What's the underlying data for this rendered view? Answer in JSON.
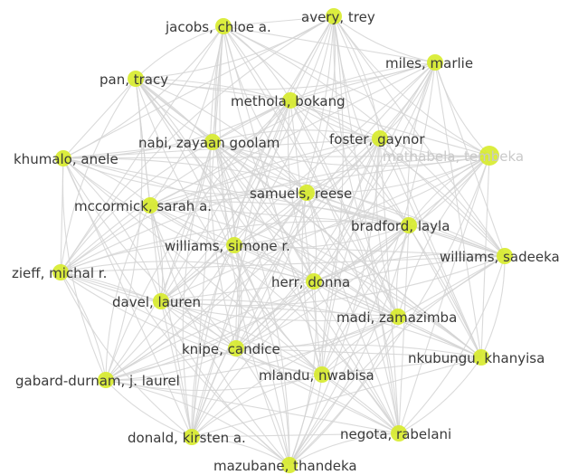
{
  "network": {
    "node_color": "#d7eb2a",
    "edge_color": "#d3d3d3",
    "label_color": "#3a3a3a",
    "nodes": [
      {
        "id": "avery",
        "label": "avery, trey"
      },
      {
        "id": "jacobs",
        "label": "jacobs, chloe a."
      },
      {
        "id": "miles",
        "label": "miles, marlie"
      },
      {
        "id": "pan",
        "label": "pan, tracy"
      },
      {
        "id": "methola",
        "label": "methola, bokang"
      },
      {
        "id": "nabi",
        "label": "nabi, zayaan goolam"
      },
      {
        "id": "foster",
        "label": "foster, gaynor"
      },
      {
        "id": "khumalo",
        "label": "khumalo, anele"
      },
      {
        "id": "tembeka",
        "label": "mathabela, tembeka",
        "faded": true
      },
      {
        "id": "samuels",
        "label": "samuels, reese"
      },
      {
        "id": "mccormick",
        "label": "mccormick, sarah a."
      },
      {
        "id": "bradford",
        "label": "bradford, layla"
      },
      {
        "id": "williams_s",
        "label": "williams, simone r."
      },
      {
        "id": "williams_sa",
        "label": "williams, sadeeka"
      },
      {
        "id": "zieff",
        "label": "zieff, michal r."
      },
      {
        "id": "herr",
        "label": "herr, donna"
      },
      {
        "id": "davel",
        "label": "davel, lauren"
      },
      {
        "id": "madi",
        "label": "madi, zamazimba"
      },
      {
        "id": "knipe",
        "label": "knipe, candice"
      },
      {
        "id": "nkubungu",
        "label": "nkubungu, khanyisa"
      },
      {
        "id": "mlandu",
        "label": "mlandu, nwabisa"
      },
      {
        "id": "gabard",
        "label": "gabard-durnam, j. laurel"
      },
      {
        "id": "negota",
        "label": "negota, rabelani"
      },
      {
        "id": "donald",
        "label": "donald, kirsten a."
      },
      {
        "id": "mazubane",
        "label": "mazubane, thandeka"
      }
    ]
  }
}
